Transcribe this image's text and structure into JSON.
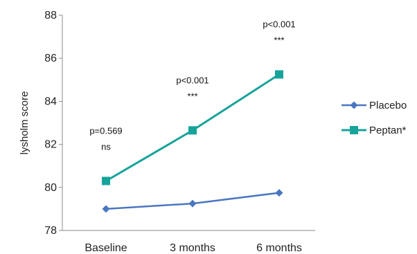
{
  "chart_data": {
    "type": "line",
    "title": "",
    "xlabel": "",
    "ylabel": "lysholm score",
    "categories": [
      "Baseline",
      "3 months",
      "6 months"
    ],
    "ylim": [
      78,
      88
    ],
    "yticks": [
      "78",
      "80",
      "82",
      "84",
      "86",
      "88"
    ],
    "grid": false,
    "legend_position": "right",
    "series": [
      {
        "name": "Placebo",
        "values": [
          79.0,
          79.25,
          79.75
        ],
        "color": "#4a76c0",
        "marker": "diamond"
      },
      {
        "name": "Peptan*",
        "values": [
          80.3,
          82.65,
          85.25
        ],
        "color": "#16a39a",
        "marker": "square"
      }
    ],
    "annotations": [
      {
        "lines": [
          "p=0.569",
          "ns"
        ]
      },
      {
        "lines": [
          "p<0.001",
          "***"
        ]
      },
      {
        "lines": [
          "p<0.001",
          "***"
        ]
      }
    ]
  }
}
